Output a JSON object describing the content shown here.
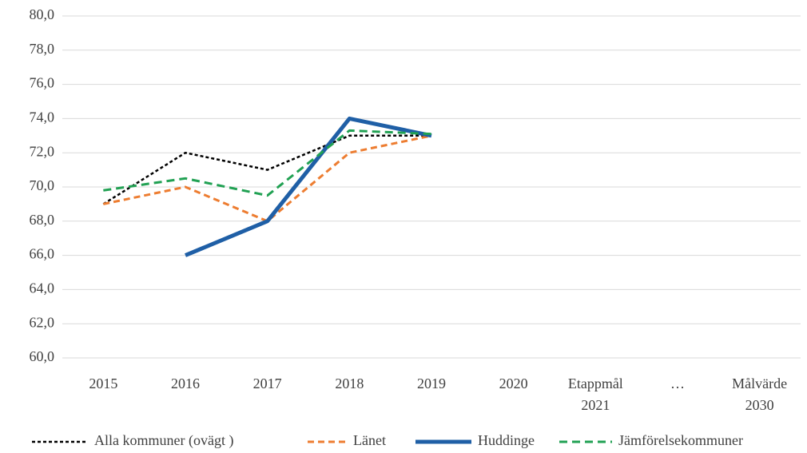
{
  "chart_data": {
    "type": "line",
    "categories": [
      "2015",
      "2016",
      "2017",
      "2018",
      "2019",
      "2020",
      "Etappmål 2021",
      "…",
      "Målvärde 2030"
    ],
    "ylim": [
      60,
      80
    ],
    "yticks": [
      {
        "value": 60,
        "label": "60,0"
      },
      {
        "value": 62,
        "label": "62,0"
      },
      {
        "value": 64,
        "label": "64,0"
      },
      {
        "value": 66,
        "label": "66,0"
      },
      {
        "value": 68,
        "label": "68,0"
      },
      {
        "value": 70,
        "label": "70,0"
      },
      {
        "value": 72,
        "label": "72,0"
      },
      {
        "value": 74,
        "label": "74,0"
      },
      {
        "value": 76,
        "label": "76,0"
      },
      {
        "value": 78,
        "label": "78,0"
      },
      {
        "value": 80,
        "label": "80,0"
      }
    ],
    "grid": true,
    "legend": "bottom",
    "series": [
      {
        "name": "Alla kommuner (ovägt )",
        "color": "#000000",
        "dash": "4 3",
        "width": 2.5,
        "values": [
          69,
          72,
          71,
          73,
          73,
          null,
          null,
          null,
          null
        ]
      },
      {
        "name": "Länet",
        "color": "#ed7d31",
        "dash": "8 5",
        "width": 3,
        "values": [
          69,
          70,
          68,
          72,
          73,
          null,
          null,
          null,
          null
        ]
      },
      {
        "name": "Huddinge",
        "color": "#1f5fa6",
        "dash": "none",
        "width": 5,
        "values": [
          null,
          66,
          68,
          74,
          73,
          null,
          null,
          null,
          null
        ]
      },
      {
        "name": "Jämförelsekommuner",
        "color": "#21a153",
        "dash": "10 6",
        "width": 3,
        "values": [
          69.8,
          70.5,
          69.5,
          73.3,
          73.1,
          null,
          null,
          null,
          null
        ]
      }
    ]
  }
}
